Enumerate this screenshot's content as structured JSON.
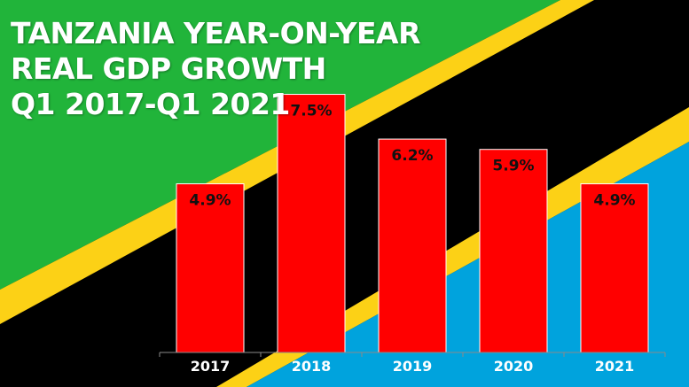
{
  "title_lines": [
    "TANZANIA YEAR-ON-YEAR",
    "REAL GDP GROWTH",
    "Q1 2017-Q1 2021"
  ],
  "colors": {
    "green": "#21b43a",
    "yellow": "#fcd116",
    "black": "#000000",
    "blue": "#00a3dd",
    "bar": "#ff0000",
    "bar_border": "#ffffff"
  },
  "chart_data": {
    "type": "bar",
    "title": "TANZANIA YEAR-ON-YEAR REAL GDP GROWTH Q1 2017-Q1 2021",
    "categories": [
      "2017",
      "2018",
      "2019",
      "2020",
      "2021"
    ],
    "values": [
      4.9,
      7.5,
      6.2,
      5.9,
      4.9
    ],
    "data_labels": [
      "4.9%",
      "7.5%",
      "6.2%",
      "5.9%",
      "4.9%"
    ],
    "xlabel": "",
    "ylabel": "",
    "ylim": [
      0,
      7.9
    ],
    "grid": false,
    "legend": "none"
  }
}
